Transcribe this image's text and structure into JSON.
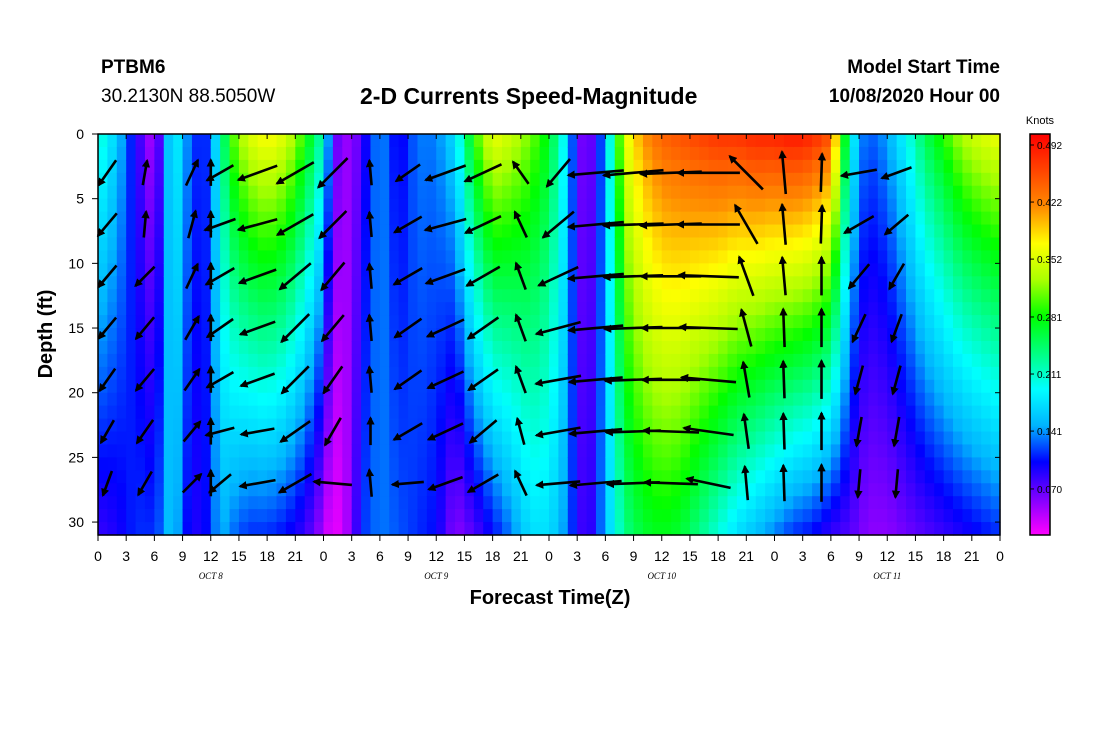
{
  "header": {
    "station": "PTBM6",
    "coords": "30.2130N 88.5050W",
    "title": "2-D Currents Speed-Magnitude",
    "model_start_label": "Model Start Time",
    "model_start_value": "10/08/2020 Hour 00"
  },
  "colors": {
    "colormap": [
      "#ff00ff",
      "#7f00ff",
      "#0000ff",
      "#00b4ff",
      "#00ffff",
      "#00ff7f",
      "#00ff00",
      "#aaff00",
      "#ffff00",
      "#ff8c00",
      "#ff4400",
      "#ff0000"
    ],
    "arrow": "#000000",
    "frame": "#000000"
  },
  "chart_data": {
    "type": "heatmap",
    "title": "2-D Currents Speed-Magnitude",
    "xlabel": "Forecast Time(Z)",
    "ylabel": "Depth (ft)",
    "colorbar_label": "Knots",
    "x_range_hours": [
      0,
      96
    ],
    "y_range_ft": [
      0,
      31
    ],
    "y_inverted": true,
    "x_tick_labels": [
      "0",
      "3",
      "6",
      "9",
      "12",
      "15",
      "18",
      "21",
      "0",
      "3",
      "6",
      "9",
      "12",
      "15",
      "18",
      "21",
      "0",
      "3",
      "6",
      "9",
      "12",
      "15",
      "18",
      "21",
      "0",
      "3",
      "6",
      "9",
      "12",
      "15",
      "18",
      "21",
      "0"
    ],
    "date_labels": [
      {
        "text": "OCT 8",
        "hour": 12
      },
      {
        "text": "OCT 9",
        "hour": 36
      },
      {
        "text": "OCT 10",
        "hour": 60
      },
      {
        "text": "OCT 11",
        "hour": 84
      }
    ],
    "y_ticks": [
      0,
      5,
      10,
      15,
      20,
      25,
      30
    ],
    "colorbar_ticks": [
      "0.492",
      "0.422",
      "0.352",
      "0.281",
      "0.211",
      "0.141",
      "0.070"
    ],
    "colorbar_range": [
      0,
      0.492
    ],
    "speed_profile": {
      "hours": [
        0,
        2,
        4,
        6,
        7,
        8,
        9,
        10,
        11,
        12,
        13,
        14,
        16,
        18,
        20,
        22,
        24,
        25,
        27,
        28,
        30,
        32,
        34,
        36,
        38,
        40,
        42,
        44,
        46,
        48,
        50,
        51,
        52,
        53,
        54,
        55,
        56,
        58,
        60,
        62,
        64,
        66,
        68,
        70,
        72,
        74,
        76,
        78,
        80,
        81,
        82,
        84,
        86,
        88,
        90,
        92,
        94,
        96
      ],
      "surface": [
        0.2,
        0.15,
        0.08,
        0.02,
        0.1,
        0.19,
        0.14,
        0.11,
        0.09,
        0.11,
        0.2,
        0.28,
        0.34,
        0.36,
        0.34,
        0.28,
        0.2,
        0.06,
        0.03,
        0.07,
        0.13,
        0.08,
        0.12,
        0.12,
        0.16,
        0.28,
        0.35,
        0.33,
        0.3,
        0.26,
        0.16,
        0.06,
        0.04,
        0.07,
        0.14,
        0.24,
        0.34,
        0.4,
        0.43,
        0.44,
        0.45,
        0.46,
        0.46,
        0.47,
        0.47,
        0.48,
        0.47,
        0.44,
        0.2,
        0.13,
        0.11,
        0.13,
        0.18,
        0.24,
        0.28,
        0.32,
        0.34,
        0.35
      ],
      "bottom": [
        0.07,
        0.08,
        0.1,
        0.1,
        0.12,
        0.16,
        0.1,
        0.08,
        0.08,
        0.1,
        0.14,
        0.12,
        0.1,
        0.1,
        0.09,
        0.07,
        0.03,
        0.0,
        0.04,
        0.1,
        0.12,
        0.11,
        0.1,
        0.09,
        0.04,
        0.06,
        0.09,
        0.12,
        0.16,
        0.16,
        0.12,
        0.08,
        0.06,
        0.09,
        0.14,
        0.18,
        0.22,
        0.25,
        0.26,
        0.25,
        0.22,
        0.19,
        0.16,
        0.14,
        0.12,
        0.1,
        0.09,
        0.07,
        0.06,
        0.05,
        0.04,
        0.04,
        0.05,
        0.06,
        0.07,
        0.08,
        0.09,
        0.1
      ]
    },
    "vector_depths_ft": [
      3,
      7,
      11,
      15,
      19,
      23,
      27
    ],
    "vector_columns": [
      {
        "hour": 1,
        "dir": [
          -125,
          -130,
          -130,
          -130,
          -125,
          -120,
          -110
        ],
        "mag": [
          0.15,
          0.14,
          0.13,
          0.12,
          0.12,
          0.11,
          0.11
        ]
      },
      {
        "hour": 5,
        "dir": [
          80,
          85,
          -135,
          -130,
          -130,
          -125,
          -120
        ],
        "mag": [
          0.1,
          0.11,
          0.12,
          0.13,
          0.13,
          0.13,
          0.12
        ]
      },
      {
        "hour": 10,
        "dir": [
          65,
          75,
          65,
          60,
          55,
          50,
          45
        ],
        "mag": [
          0.13,
          0.13,
          0.12,
          0.12,
          0.11,
          0.11,
          0.11
        ]
      },
      {
        "hour": 12,
        "dir": [
          90,
          90,
          90,
          90,
          90,
          90,
          90
        ],
        "mag": [
          0.11,
          0.11,
          0.11,
          0.11,
          0.11,
          0.11,
          0.11
        ]
      },
      {
        "hour": 13,
        "dir": [
          -150,
          -160,
          -150,
          -145,
          -150,
          -165,
          -140
        ],
        "mag": [
          0.15,
          0.17,
          0.17,
          0.16,
          0.15,
          0.14,
          0.13
        ]
      },
      {
        "hour": 17,
        "dir": [
          -160,
          -165,
          -160,
          -160,
          -160,
          -170,
          -170
        ],
        "mag": [
          0.25,
          0.24,
          0.23,
          0.21,
          0.2,
          0.18,
          0.2
        ]
      },
      {
        "hour": 21,
        "dir": [
          -150,
          -150,
          -140,
          -135,
          -135,
          -145,
          -150
        ],
        "mag": [
          0.26,
          0.25,
          0.24,
          0.23,
          0.22,
          0.2,
          0.21
        ]
      },
      {
        "hour": 25,
        "dir": [
          -135,
          -135,
          -130,
          -130,
          -125,
          -120,
          175
        ],
        "mag": [
          0.25,
          0.22,
          0.2,
          0.18,
          0.17,
          0.16,
          0.22
        ]
      },
      {
        "hour": 29,
        "dir": [
          95,
          95,
          95,
          95,
          95,
          90,
          95
        ],
        "mag": [
          0.1,
          0.1,
          0.1,
          0.11,
          0.11,
          0.12,
          0.12
        ]
      },
      {
        "hour": 33,
        "dir": [
          -145,
          -150,
          -150,
          -145,
          -145,
          -150,
          -175
        ],
        "mag": [
          0.14,
          0.16,
          0.17,
          0.17,
          0.17,
          0.17,
          0.16
        ]
      },
      {
        "hour": 37,
        "dir": [
          -160,
          -165,
          -160,
          -155,
          -155,
          -155,
          -160
        ],
        "mag": [
          0.26,
          0.26,
          0.25,
          0.24,
          0.23,
          0.22,
          0.2
        ]
      },
      {
        "hour": 41,
        "dir": [
          -155,
          -155,
          -150,
          -145,
          -145,
          -140,
          -150
        ],
        "mag": [
          0.24,
          0.23,
          0.22,
          0.21,
          0.2,
          0.19,
          0.19
        ]
      },
      {
        "hour": 45,
        "dir": [
          125,
          115,
          110,
          110,
          110,
          105,
          115
        ],
        "mag": [
          0.12,
          0.13,
          0.13,
          0.13,
          0.13,
          0.12,
          0.12
        ]
      },
      {
        "hour": 49,
        "dir": [
          -130,
          -140,
          -155,
          -165,
          -170,
          -170,
          -175
        ],
        "mag": [
          0.2,
          0.24,
          0.27,
          0.29,
          0.29,
          0.28,
          0.27
        ]
      },
      {
        "hour": 53,
        "dir": [
          -175,
          -175,
          -175,
          -175,
          -175,
          -175,
          -175
        ],
        "mag": [
          0.38,
          0.38,
          0.38,
          0.37,
          0.36,
          0.35,
          0.34
        ]
      },
      {
        "hour": 57,
        "dir": [
          -175,
          -178,
          -178,
          -178,
          -178,
          -178,
          -178
        ],
        "mag": [
          0.42,
          0.42,
          0.41,
          0.4,
          0.39,
          0.37,
          0.35
        ]
      },
      {
        "hour": 61,
        "dir": [
          -178,
          -178,
          180,
          180,
          180,
          178,
          178
        ],
        "mag": [
          0.43,
          0.43,
          0.42,
          0.41,
          0.4,
          0.38,
          0.36
        ]
      },
      {
        "hour": 65,
        "dir": [
          180,
          180,
          178,
          178,
          175,
          172,
          168
        ],
        "mag": [
          0.44,
          0.44,
          0.42,
          0.4,
          0.37,
          0.33,
          0.28
        ]
      },
      {
        "hour": 69,
        "dir": [
          135,
          120,
          110,
          105,
          100,
          98,
          95
        ],
        "mag": [
          0.3,
          0.28,
          0.25,
          0.22,
          0.2,
          0.19,
          0.18
        ]
      },
      {
        "hour": 73,
        "dir": [
          95,
          95,
          95,
          92,
          92,
          92,
          92
        ],
        "mag": [
          0.26,
          0.24,
          0.22,
          0.22,
          0.21,
          0.2,
          0.2
        ]
      },
      {
        "hour": 77,
        "dir": [
          88,
          88,
          90,
          90,
          90,
          90,
          90
        ],
        "mag": [
          0.22,
          0.22,
          0.22,
          0.22,
          0.22,
          0.21,
          0.21
        ]
      },
      {
        "hour": 81,
        "dir": [
          -170,
          -150,
          -130,
          -115,
          -105,
          -100,
          -95
        ],
        "mag": [
          0.2,
          0.18,
          0.16,
          0.15,
          0.14,
          0.14,
          0.13
        ]
      },
      {
        "hour": 85,
        "dir": [
          -160,
          -140,
          -120,
          -110,
          -105,
          -100,
          -95
        ],
        "mag": [
          0.16,
          0.15,
          0.14,
          0.14,
          0.14,
          0.14,
          0.13
        ]
      }
    ]
  }
}
